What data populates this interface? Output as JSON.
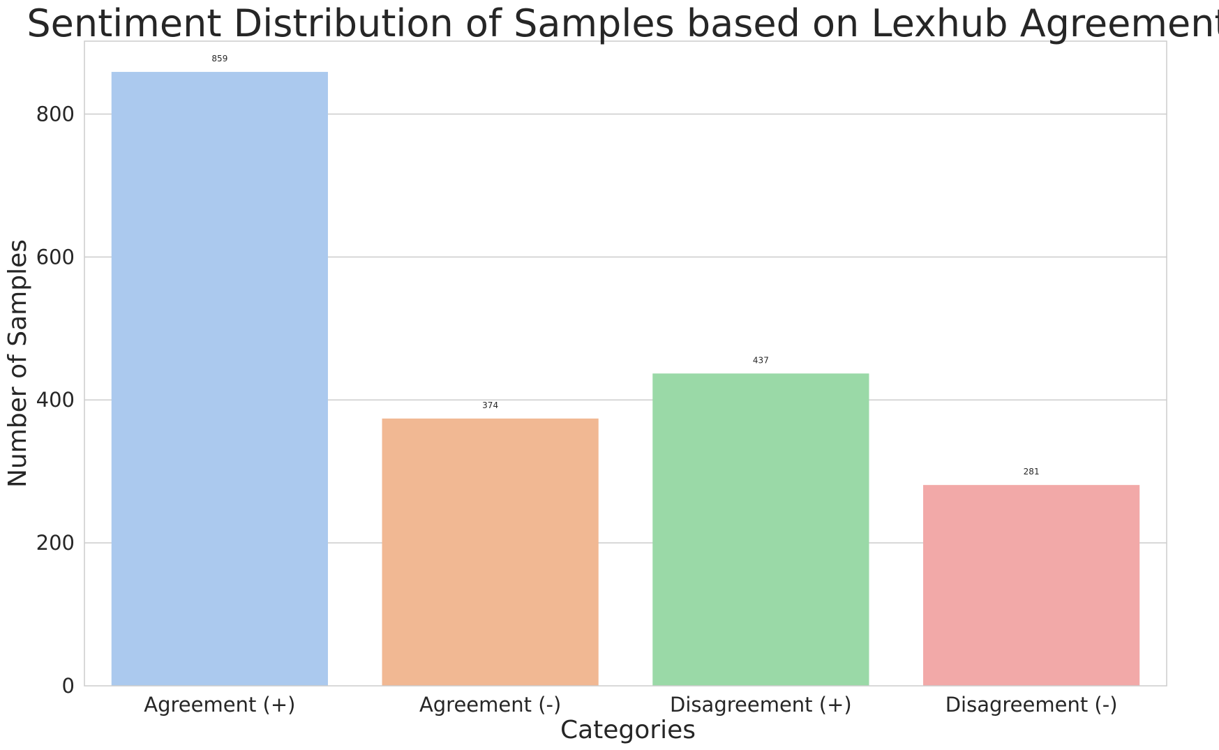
{
  "chart_data": {
    "type": "bar",
    "title": "Sentiment Distribution of Samples based on Lexhub Agreement",
    "xlabel": "Categories",
    "ylabel": "Number of Samples",
    "categories": [
      "Agreement (+)",
      "Agreement (-)",
      "Disagreement (+)",
      "Disagreement (-)"
    ],
    "values": [
      859,
      374,
      437,
      281
    ],
    "data_labels": [
      "859",
      "374",
      "437",
      "281"
    ],
    "colors": [
      "#abc9ee",
      "#f1b893",
      "#9ad9a7",
      "#f2a9a8"
    ],
    "ylim": [
      0,
      902
    ],
    "yticks": [
      0,
      200,
      400,
      600,
      800
    ],
    "ytick_labels": [
      "0",
      "200",
      "400",
      "600",
      "800"
    ],
    "grid": "horizontal",
    "legend": "none"
  }
}
